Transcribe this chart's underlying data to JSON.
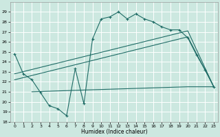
{
  "xlabel": "Humidex (Indice chaleur)",
  "background_color": "#cce8e0",
  "grid_color": "#b8d8d0",
  "line_color": "#1e6b65",
  "xlim": [
    -0.5,
    23.5
  ],
  "ylim": [
    18,
    30
  ],
  "yticks": [
    18,
    19,
    20,
    21,
    22,
    23,
    24,
    25,
    26,
    27,
    28,
    29
  ],
  "xticks": [
    0,
    1,
    2,
    3,
    4,
    5,
    6,
    7,
    8,
    9,
    10,
    11,
    12,
    13,
    14,
    15,
    16,
    17,
    18,
    19,
    20,
    21,
    22,
    23
  ],
  "line1_x": [
    0,
    1,
    2,
    3,
    4,
    5,
    6,
    7,
    8,
    9,
    10,
    11,
    12,
    13,
    14,
    15,
    16,
    17,
    18,
    19,
    20,
    21,
    22,
    23
  ],
  "line1_y": [
    24.8,
    22.8,
    22.2,
    20.9,
    19.6,
    19.3,
    18.6,
    23.3,
    19.8,
    26.3,
    28.3,
    28.5,
    29.0,
    28.3,
    28.8,
    28.3,
    28.0,
    27.5,
    27.2,
    27.2,
    26.4,
    24.7,
    23.2,
    21.5
  ],
  "line2_x": [
    0,
    20,
    23
  ],
  "line2_y": [
    22.2,
    26.5,
    21.5
  ],
  "line3_x": [
    0,
    20,
    23
  ],
  "line3_y": [
    22.8,
    27.1,
    21.5
  ],
  "line4_x": [
    2,
    9,
    20,
    23
  ],
  "line4_y": [
    21.0,
    21.2,
    21.5,
    21.5
  ]
}
